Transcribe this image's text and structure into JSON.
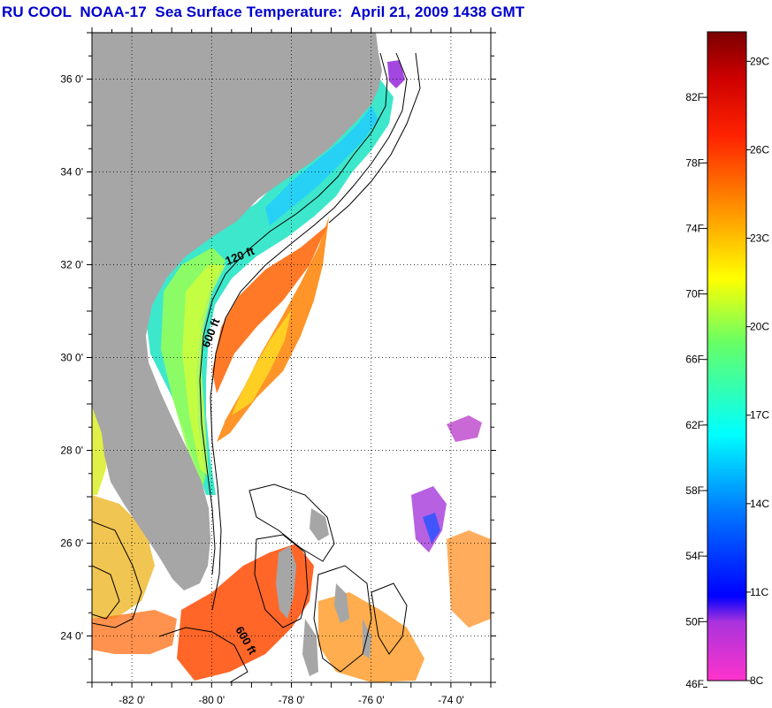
{
  "title": "RU COOL  NOAA-17  Sea Surface Temperature:  April 21, 2009 1438 GMT",
  "map": {
    "lon_range": [
      -83,
      -73
    ],
    "lat_range": [
      23,
      37
    ],
    "lat_ticks": [
      {
        "value": 24,
        "label": "24 0'"
      },
      {
        "value": 26,
        "label": "26 0'"
      },
      {
        "value": 28,
        "label": "28 0'"
      },
      {
        "value": 30,
        "label": "30 0'"
      },
      {
        "value": 32,
        "label": "32 0'"
      },
      {
        "value": 34,
        "label": "34 0'"
      },
      {
        "value": 36,
        "label": "36 0'"
      }
    ],
    "lon_ticks": [
      {
        "value": -82,
        "label": "-82 0'"
      },
      {
        "value": -80,
        "label": "-80 0'"
      },
      {
        "value": -78,
        "label": "-78 0'"
      },
      {
        "value": -76,
        "label": "-76 0'"
      },
      {
        "value": -74,
        "label": "-74 0'"
      }
    ],
    "contour_labels": [
      {
        "text": "120 ft"
      },
      {
        "text": "600 ft"
      },
      {
        "text": "600 ft"
      }
    ],
    "colors": {
      "land": "#a6a6a6",
      "ocean_nodata": "#ffffff",
      "grid": "#000000",
      "title": "#0000cc"
    }
  },
  "colorbar": {
    "range_c": [
      8,
      30
    ],
    "celsius_labels": [
      {
        "value": 8,
        "label": "8C"
      },
      {
        "value": 11,
        "label": "11C"
      },
      {
        "value": 14,
        "label": "14C"
      },
      {
        "value": 17,
        "label": "17C"
      },
      {
        "value": 20,
        "label": "20C"
      },
      {
        "value": 23,
        "label": "23C"
      },
      {
        "value": 26,
        "label": "26C"
      },
      {
        "value": 29,
        "label": "29C"
      }
    ],
    "fahrenheit_labels": [
      {
        "value": 46,
        "label": "46F"
      },
      {
        "value": 50,
        "label": "50F"
      },
      {
        "value": 54,
        "label": "54F"
      },
      {
        "value": 58,
        "label": "58F"
      },
      {
        "value": 62,
        "label": "62F"
      },
      {
        "value": 66,
        "label": "66F"
      },
      {
        "value": 70,
        "label": "70F"
      },
      {
        "value": 74,
        "label": "74F"
      },
      {
        "value": 78,
        "label": "78F"
      },
      {
        "value": 82,
        "label": "82F"
      }
    ]
  }
}
